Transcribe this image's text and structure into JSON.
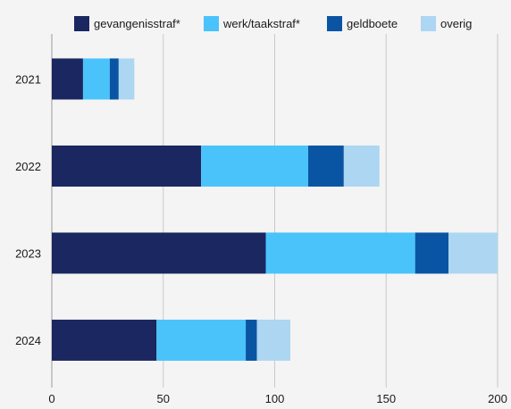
{
  "chart_data": {
    "type": "bar",
    "orientation": "horizontal",
    "stacked": true,
    "categories": [
      "2021",
      "2022",
      "2023",
      "2024"
    ],
    "series": [
      {
        "name": "gevangenisstraf*",
        "values": [
          14,
          67,
          96,
          47
        ],
        "color": "#1b2760"
      },
      {
        "name": "werk/taakstraf*",
        "values": [
          12,
          48,
          67,
          40
        ],
        "color": "#4ac3fb"
      },
      {
        "name": "geldboete",
        "values": [
          4,
          16,
          15,
          5
        ],
        "color": "#0a55a3"
      },
      {
        "name": "overig",
        "values": [
          7,
          16,
          22,
          15
        ],
        "color": "#acd6f2"
      }
    ],
    "xlim": [
      0,
      200
    ],
    "xticks": [
      "0",
      "50",
      "100",
      "150",
      "200"
    ],
    "grid": true,
    "legend_position": "top"
  }
}
